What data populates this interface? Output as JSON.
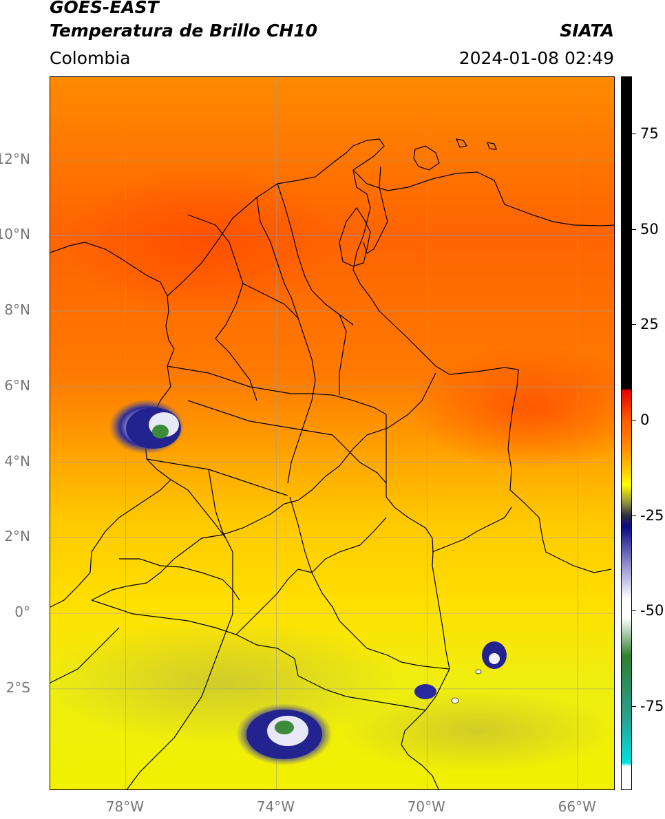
{
  "header": {
    "satellite": "GOES-EAST",
    "product": "Temperatura de Brillo CH10",
    "agency": "SIATA",
    "region": "Colombia",
    "datetime": "2024-01-08 02:49"
  },
  "map": {
    "lat_labels": [
      "12°N",
      "10°N",
      "8°N",
      "6°N",
      "4°N",
      "2°N",
      "0°",
      "2°S"
    ],
    "lon_labels": [
      "78°W",
      "74°W",
      "70°W",
      "66°W"
    ],
    "lon_range": [
      -80,
      -65
    ],
    "lat_range": [
      -4.7,
      14.2
    ],
    "colors": {
      "warm": "#ff6a00",
      "mid": "#ffc800",
      "cool": "#f4f000",
      "cloud": "#1e1e8c",
      "cloud_core": "#3c8a3c",
      "border": "#000000",
      "grid": "#999999"
    }
  },
  "colorbar": {
    "labels": [
      "75",
      "50",
      "25",
      "0",
      "-25",
      "-50",
      "-75"
    ],
    "values": [
      75,
      50,
      25,
      0,
      -25,
      -50,
      -75
    ],
    "range": [
      -97,
      90
    ]
  }
}
